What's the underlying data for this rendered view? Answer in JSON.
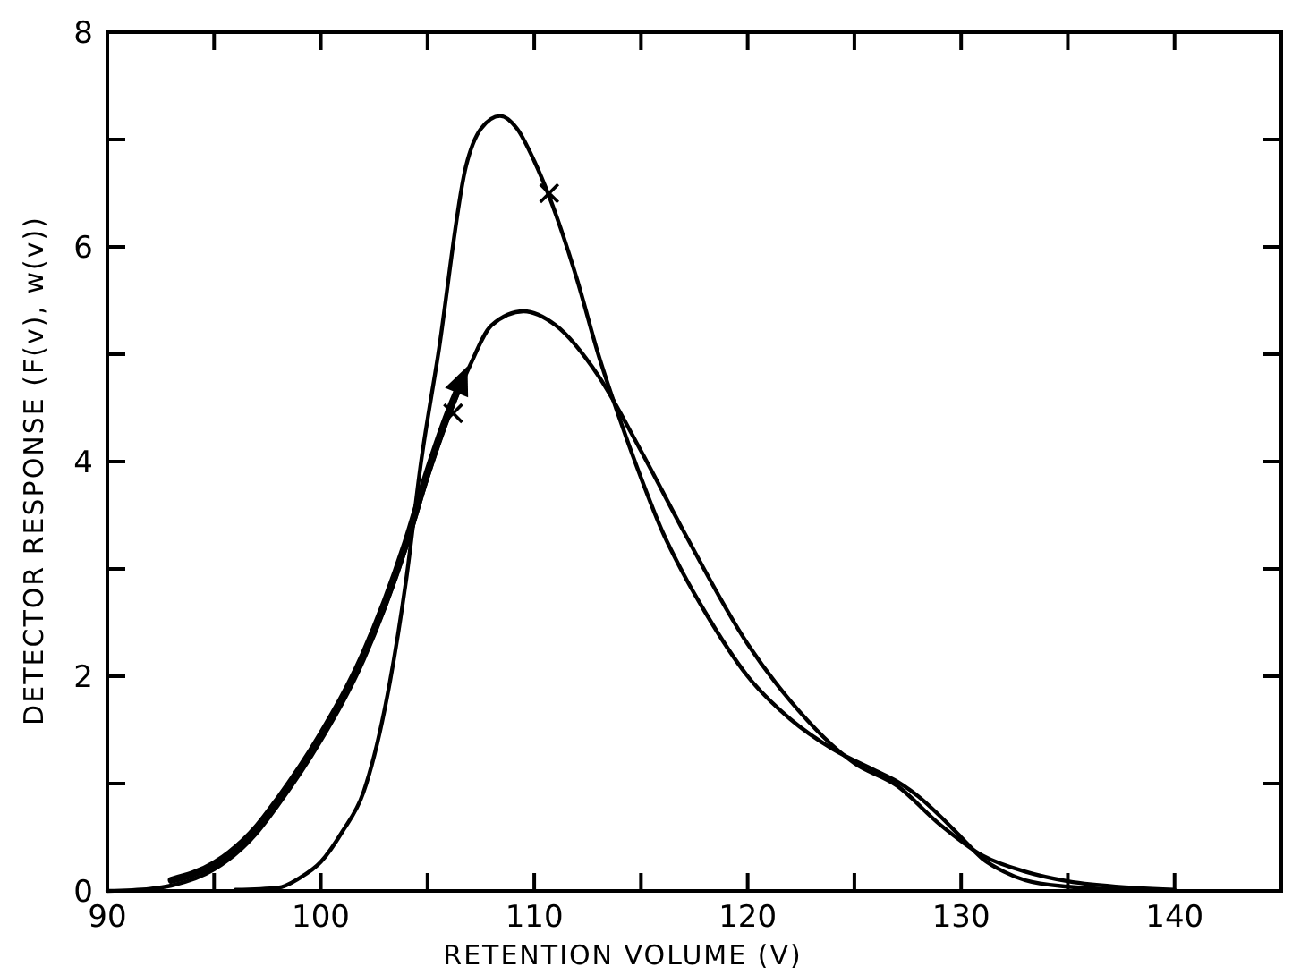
{
  "chart_data": {
    "type": "line",
    "xlabel": "RETENTION VOLUME (V)",
    "ylabel": "DETECTOR RESPONSE (F(v), w(v))",
    "xlim": [
      90,
      145
    ],
    "ylim": [
      0,
      8
    ],
    "xticks": [
      90,
      {
        "value": 95,
        "label": null
      },
      100,
      {
        "value": 105,
        "label": null
      },
      110,
      {
        "value": 115,
        "label": null
      },
      120,
      {
        "value": 125,
        "label": null
      },
      130,
      {
        "value": 135,
        "label": null
      },
      140
    ],
    "yticks": [
      0,
      {
        "value": 1,
        "label": null
      },
      2,
      {
        "value": 3,
        "label": null
      },
      4,
      {
        "value": 5,
        "label": null
      },
      6,
      {
        "value": 7,
        "label": null
      },
      8
    ],
    "grid": false,
    "line_style": "solid",
    "marker": "none",
    "series": [
      {
        "color": "#000000",
        "x": [
          96,
          98,
          99,
          100,
          101,
          102,
          103,
          104,
          104.7,
          105.5,
          106.8,
          107.5,
          108.4,
          109.2,
          110,
          110.7,
          112,
          113,
          114,
          115,
          116,
          117,
          118,
          120,
          122,
          124,
          126,
          127,
          128,
          129,
          130,
          131,
          132,
          133,
          135,
          138
        ],
        "values": [
          0.01,
          0.03,
          0.12,
          0.27,
          0.55,
          0.92,
          1.7,
          2.9,
          4.0,
          5.0,
          6.75,
          7.1,
          7.22,
          7.1,
          6.8,
          6.47,
          5.7,
          5.0,
          4.4,
          3.85,
          3.35,
          2.95,
          2.6,
          2.0,
          1.6,
          1.32,
          1.12,
          1.02,
          0.88,
          0.7,
          0.5,
          0.3,
          0.18,
          0.1,
          0.04,
          0.01
        ]
      },
      {
        "color": "#000000",
        "x": [
          90,
          92,
          93,
          95,
          97,
          98,
          100,
          102,
          104,
          105,
          106,
          107,
          108,
          109.5,
          111,
          113,
          115,
          117,
          120,
          122,
          125,
          127,
          129,
          131,
          133,
          135,
          138,
          140
        ],
        "values": [
          0,
          0.02,
          0.05,
          0.2,
          0.54,
          0.8,
          1.4,
          2.15,
          3.2,
          3.85,
          4.42,
          4.9,
          5.27,
          5.4,
          5.27,
          4.8,
          4.1,
          3.35,
          2.3,
          1.77,
          1.19,
          0.98,
          0.62,
          0.33,
          0.18,
          0.09,
          0.03,
          0.01
        ]
      },
      {
        "type": "scatter",
        "marker": "cross",
        "color": "#000000",
        "x": [
          106.2,
          110.7
        ],
        "values": [
          4.45,
          6.5
        ]
      }
    ]
  }
}
